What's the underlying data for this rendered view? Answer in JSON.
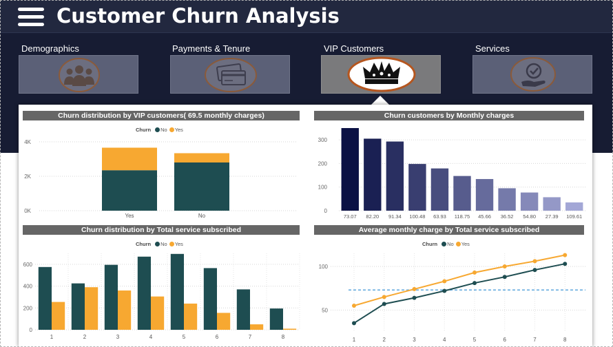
{
  "header": {
    "title": "Customer Churn Analysis",
    "menu_icon": "hamburger-menu-icon"
  },
  "nav": [
    {
      "label": "Demographics",
      "icon": "people-group-icon",
      "active": false
    },
    {
      "label": "Payments & Tenure",
      "icon": "credit-cards-icon",
      "active": false
    },
    {
      "label": "VIP Customers",
      "icon": "crown-icon",
      "active": true
    },
    {
      "label": "Services",
      "icon": "hand-badge-icon",
      "active": false
    }
  ],
  "colors": {
    "no": "#1e4d51",
    "yes": "#f7a831",
    "header": "#22283f",
    "band": "#171c33",
    "title_bar": "#666666",
    "bars_dark": "#0b1144",
    "bars_light": "#a3a7d6",
    "reference_line": "#6aaee0"
  },
  "legend": {
    "title": "Churn",
    "no": "No",
    "yes": "Yes"
  },
  "chart_data": [
    {
      "type": "bar",
      "stacked": true,
      "title": "Churn distribution by VIP customers( 69.5 monthly charges)",
      "categories": [
        "Yes",
        "No"
      ],
      "series": [
        {
          "name": "No",
          "values": [
            2350,
            2800
          ]
        },
        {
          "name": "Yes",
          "values": [
            1310,
            540
          ]
        }
      ],
      "ylim": [
        0,
        4000
      ],
      "yticks": [
        "0K",
        "2K",
        "4K"
      ],
      "legend_placement": "top-center",
      "grid": true
    },
    {
      "type": "bar",
      "title": "Churn customers by Monthly charges",
      "categories": [
        "73.07",
        "82.20",
        "91.34",
        "100.48",
        "63.93",
        "118.75",
        "45.66",
        "36.52",
        "54.80",
        "27.39",
        "109.61"
      ],
      "values": [
        350,
        305,
        293,
        198,
        179,
        147,
        134,
        95,
        77,
        57,
        35
      ],
      "ylim": [
        0,
        350
      ],
      "yticks": [
        "0",
        "100",
        "200",
        "300"
      ],
      "grid": true
    },
    {
      "type": "bar",
      "title": "Churn distribution by Total service subscribed",
      "categories": [
        "1",
        "2",
        "3",
        "4",
        "5",
        "6",
        "7",
        "8"
      ],
      "series": [
        {
          "name": "No",
          "values": [
            575,
            425,
            595,
            670,
            695,
            565,
            370,
            195
          ]
        },
        {
          "name": "Yes",
          "values": [
            255,
            390,
            360,
            305,
            240,
            155,
            50,
            10
          ]
        }
      ],
      "ylim": [
        0,
        700
      ],
      "yticks": [
        "0",
        "200",
        "400",
        "600"
      ],
      "legend_placement": "top-center",
      "grid": true
    },
    {
      "type": "line",
      "title": "Average monthly charge by Total service subscribed",
      "x": [
        "1",
        "2",
        "3",
        "4",
        "5",
        "6",
        "7",
        "8"
      ],
      "series": [
        {
          "name": "No",
          "values": [
            35,
            57,
            64,
            72,
            81,
            88,
            96,
            103
          ]
        },
        {
          "name": "Yes",
          "values": [
            55,
            65,
            74,
            83,
            93,
            100,
            106,
            113
          ]
        }
      ],
      "reference_value": 73,
      "ylim": [
        25,
        115
      ],
      "yticks": [
        "50",
        "100"
      ],
      "legend_placement": "top-center",
      "grid": true
    }
  ]
}
